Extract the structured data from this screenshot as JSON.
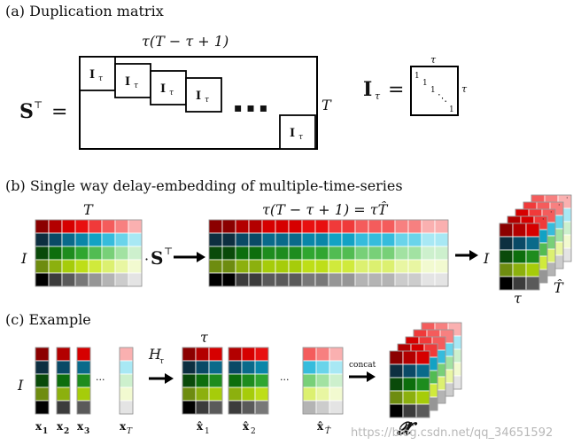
{
  "section_a": {
    "title": "(a) Duplication matrix",
    "width_label": "τ(T − τ + 1)",
    "S_symbol": "S",
    "transpose": "⊤",
    "equals": "=",
    "block_label": "I",
    "block_sub": "τ",
    "dots": "▪ ▪ ▪",
    "height_label": "T",
    "identity_lhs": "I",
    "identity_lhs_sub": "τ",
    "identity_equals": "=",
    "identity_top": "τ",
    "identity_right": "τ",
    "diag_one": "1",
    "diag_dots": "⋱"
  },
  "section_b": {
    "title": "(b) Single way delay-embedding of multiple-time-series",
    "T_label": "T",
    "I_label": "I",
    "op_dot": "·",
    "op_S": "S",
    "op_transpose": "⊤",
    "wide_label": "τ(T − τ + 1) = τT̂",
    "tensor_I": "I",
    "tensor_tau": "τ",
    "tensor_That": "T̂"
  },
  "section_c": {
    "title": "(c) Example",
    "I_label": "I",
    "x_labels": [
      "x",
      "x",
      "x"
    ],
    "x_subs": [
      "1",
      "2",
      "3"
    ],
    "xT_label": "x",
    "xT_sub": "T",
    "ellipsis": "···",
    "H_label": "H",
    "H_sub": "τ",
    "tau_label": "τ",
    "xhat_labels": [
      "x̂",
      "x̂",
      "x̂"
    ],
    "xhat_subs": [
      "1",
      "2",
      "T̂"
    ],
    "concat_label": "concat",
    "X_label": "𝓧̂"
  },
  "watermark": "https://blog.csdn.net/qq_34651592",
  "colors": {
    "red": [
      "#8b0000",
      "#b30000",
      "#d60000",
      "#e81010",
      "#f03a3a",
      "#f45c5c",
      "#f78080",
      "#fab0b0"
    ],
    "blue": [
      "#0d2f40",
      "#0a4a66",
      "#0a6a8a",
      "#0a86a8",
      "#12a2c4",
      "#36bcdc",
      "#6ad4ea",
      "#a8e8f4"
    ],
    "green": [
      "#0a4a0a",
      "#0d6e0d",
      "#1e8c1e",
      "#30a630",
      "#52bc52",
      "#78d078",
      "#a2e2a2",
      "#cdf0cd"
    ],
    "yellow": [
      "#6e8c10",
      "#8cb00e",
      "#a6cc0a",
      "#bede18",
      "#d0ea3c",
      "#dcf070",
      "#e8f6a2",
      "#f2fad0"
    ],
    "gray": [
      "#000000",
      "#3c3c3c",
      "#5a5a5a",
      "#787878",
      "#969696",
      "#b4b4b4",
      "#cccccc",
      "#e4e4e4"
    ]
  }
}
